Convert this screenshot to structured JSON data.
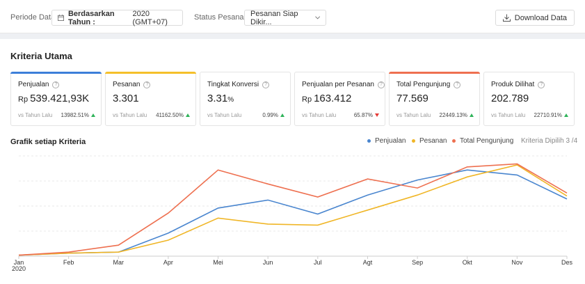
{
  "filters": {
    "period_label": "Periode Data",
    "period_prefix": "Berdasarkan Tahun :",
    "period_value": "2020 (GMT+07)",
    "status_label": "Status Pesanan",
    "status_value": "Pesanan Siap Dikir...",
    "download_label": "Download Data"
  },
  "kriteria": {
    "title": "Kriteria Utama",
    "cards": [
      {
        "title": "Penjualan",
        "prefix": "Rp",
        "value": "539.421,93K",
        "suffix": "",
        "cmp": "vs Tahun Lalu",
        "delta": "13982.51%",
        "dir": "up",
        "accent": "#3d7fd9"
      },
      {
        "title": "Pesanan",
        "prefix": "",
        "value": "3.301",
        "suffix": "",
        "cmp": "vs Tahun Lalu",
        "delta": "41162.50%",
        "dir": "up",
        "accent": "#f5c02a"
      },
      {
        "title": "Tingkat Konversi",
        "prefix": "",
        "value": "3.31",
        "suffix": "%",
        "cmp": "vs Tahun Lalu",
        "delta": "0.99%",
        "dir": "up",
        "accent": ""
      },
      {
        "title": "Penjualan per Pesanan",
        "prefix": "Rp",
        "value": "163.412",
        "suffix": "",
        "cmp": "vs Tahun Lalu",
        "delta": "65.87%",
        "dir": "down",
        "accent": ""
      },
      {
        "title": "Total Pengunjung",
        "prefix": "",
        "value": "77.569",
        "suffix": "",
        "cmp": "vs Tahun Lalu",
        "delta": "22449.13%",
        "dir": "up",
        "accent": "#ee7050"
      },
      {
        "title": "Produk Dilihat",
        "prefix": "",
        "value": "202.789",
        "suffix": "",
        "cmp": "vs Tahun Lalu",
        "delta": "22710.91%",
        "dir": "up",
        "accent": ""
      }
    ]
  },
  "chart": {
    "title": "Grafik setiap Kriteria",
    "selected_info": "Kriteria Dipilih 3 /4",
    "year_label": "2020"
  },
  "chart_data": {
    "type": "line",
    "categories": [
      "Jan",
      "Feb",
      "Mar",
      "Apr",
      "Mei",
      "Jun",
      "Jul",
      "Agt",
      "Sep",
      "Okt",
      "Nov",
      "Des"
    ],
    "ylim": [
      0,
      100
    ],
    "grid": true,
    "legend": "top-right",
    "series": [
      {
        "name": "Penjualan",
        "color": "#4a86cf",
        "values": [
          1,
          3,
          4,
          23,
          48,
          56,
          42,
          61,
          76,
          86,
          81,
          57
        ]
      },
      {
        "name": "Pesanan",
        "color": "#f0b627",
        "values": [
          1,
          3,
          4,
          16,
          38,
          32,
          31,
          46,
          61,
          79,
          91,
          60
        ]
      },
      {
        "name": "Total Pengunjung",
        "color": "#ee7050",
        "values": [
          1,
          4,
          11,
          43,
          86,
          72,
          59,
          77,
          68,
          89,
          92,
          63
        ]
      }
    ]
  }
}
